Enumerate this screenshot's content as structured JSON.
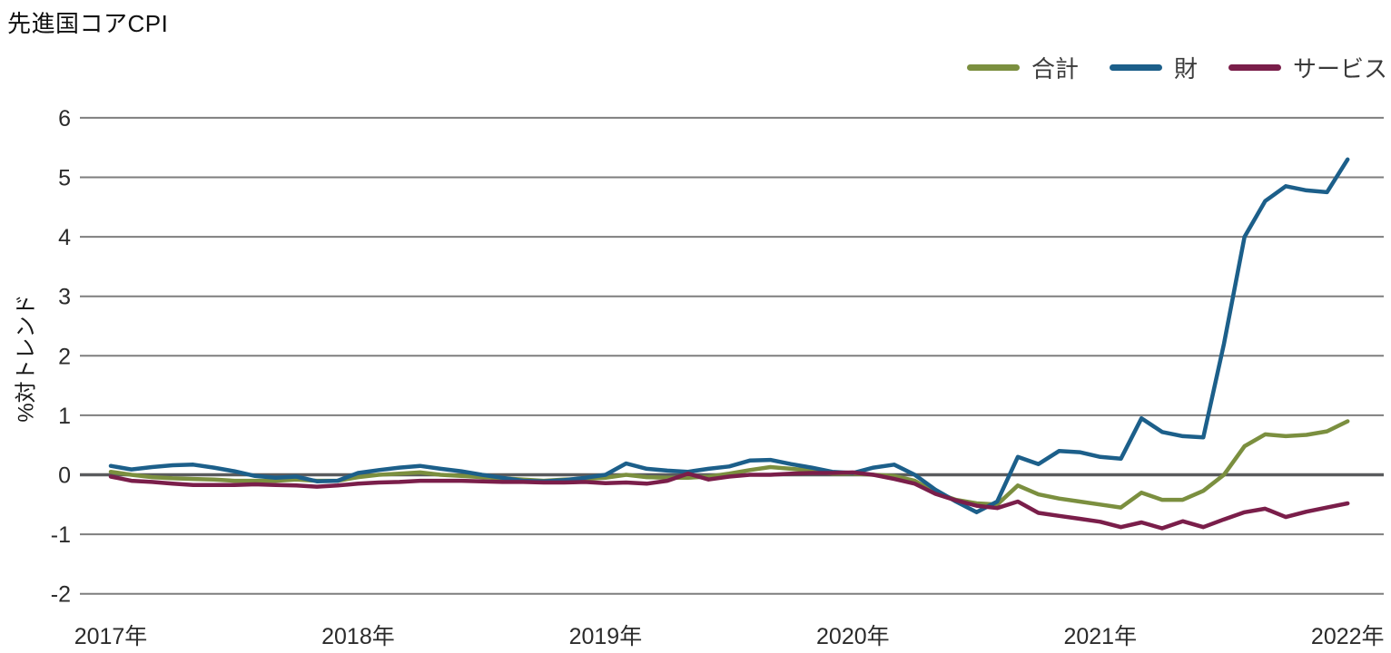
{
  "chart_data": {
    "type": "line",
    "title": "先進国コアCPI",
    "ylabel": "%対トレンド",
    "xlabel": "",
    "ylim": [
      -2,
      6
    ],
    "y_ticks": [
      6,
      5,
      4,
      3,
      2,
      1,
      0,
      -1,
      -2
    ],
    "x": {
      "start": "2017-01",
      "end": "2022-01",
      "interval": "monthly",
      "points": 61
    },
    "x_ticks": [
      {
        "label": "2017年",
        "month_index": 0
      },
      {
        "label": "2018年",
        "month_index": 12
      },
      {
        "label": "2019年",
        "month_index": 24
      },
      {
        "label": "2020年",
        "month_index": 36
      },
      {
        "label": "2021年",
        "month_index": 48
      },
      {
        "label": "2022年",
        "month_index": 60
      }
    ],
    "grid": "horizontal",
    "legend_position": "top-right",
    "colors": {
      "grid": "#7e7e7e",
      "zero_line": "#5a5b5d",
      "tick_text": "#2b2b2b",
      "title_text": "#111111"
    },
    "series": [
      {
        "name": "合計",
        "color": "#7b8f3f",
        "values": [
          0.05,
          0.0,
          -0.04,
          -0.06,
          -0.07,
          -0.08,
          -0.1,
          -0.1,
          -0.1,
          -0.08,
          -0.1,
          -0.1,
          -0.04,
          0.0,
          0.02,
          0.04,
          0.0,
          -0.02,
          -0.04,
          -0.06,
          -0.08,
          -0.1,
          -0.08,
          -0.07,
          -0.05,
          0.0,
          -0.04,
          -0.05,
          -0.05,
          -0.03,
          0.02,
          0.08,
          0.13,
          0.1,
          0.07,
          0.02,
          0.02,
          0.0,
          -0.02,
          -0.1,
          -0.3,
          -0.42,
          -0.48,
          -0.5,
          -0.18,
          -0.33,
          -0.4,
          -0.45,
          -0.5,
          -0.55,
          -0.3,
          -0.42,
          -0.42,
          -0.27,
          0.0,
          0.48,
          0.68,
          0.65,
          0.67,
          0.73,
          0.9
        ]
      },
      {
        "name": "財",
        "color": "#1c5f8a",
        "values": [
          0.15,
          0.09,
          0.13,
          0.16,
          0.17,
          0.12,
          0.06,
          -0.02,
          -0.05,
          -0.03,
          -0.11,
          -0.1,
          0.03,
          0.08,
          0.12,
          0.15,
          0.1,
          0.06,
          0.0,
          -0.05,
          -0.1,
          -0.11,
          -0.09,
          -0.05,
          0.0,
          0.19,
          0.1,
          0.07,
          0.05,
          0.1,
          0.14,
          0.24,
          0.25,
          0.18,
          0.12,
          0.05,
          0.03,
          0.12,
          0.17,
          0.0,
          -0.25,
          -0.45,
          -0.63,
          -0.45,
          0.3,
          0.18,
          0.4,
          0.38,
          0.3,
          0.27,
          0.95,
          0.72,
          0.65,
          0.63,
          2.2,
          4.0,
          4.6,
          4.85,
          4.78,
          4.75,
          5.3
        ]
      },
      {
        "name": "サービス",
        "color": "#7a1e4a",
        "values": [
          -0.03,
          -0.1,
          -0.12,
          -0.15,
          -0.17,
          -0.17,
          -0.17,
          -0.16,
          -0.17,
          -0.18,
          -0.2,
          -0.18,
          -0.15,
          -0.13,
          -0.12,
          -0.1,
          -0.1,
          -0.1,
          -0.11,
          -0.12,
          -0.12,
          -0.13,
          -0.13,
          -0.12,
          -0.14,
          -0.13,
          -0.15,
          -0.1,
          0.02,
          -0.08,
          -0.03,
          0.0,
          0.0,
          0.02,
          0.03,
          0.03,
          0.04,
          0.0,
          -0.07,
          -0.15,
          -0.32,
          -0.43,
          -0.52,
          -0.56,
          -0.45,
          -0.64,
          -0.69,
          -0.74,
          -0.79,
          -0.88,
          -0.8,
          -0.9,
          -0.78,
          -0.88,
          -0.75,
          -0.63,
          -0.57,
          -0.71,
          -0.62,
          -0.55,
          -0.48
        ]
      }
    ]
  }
}
